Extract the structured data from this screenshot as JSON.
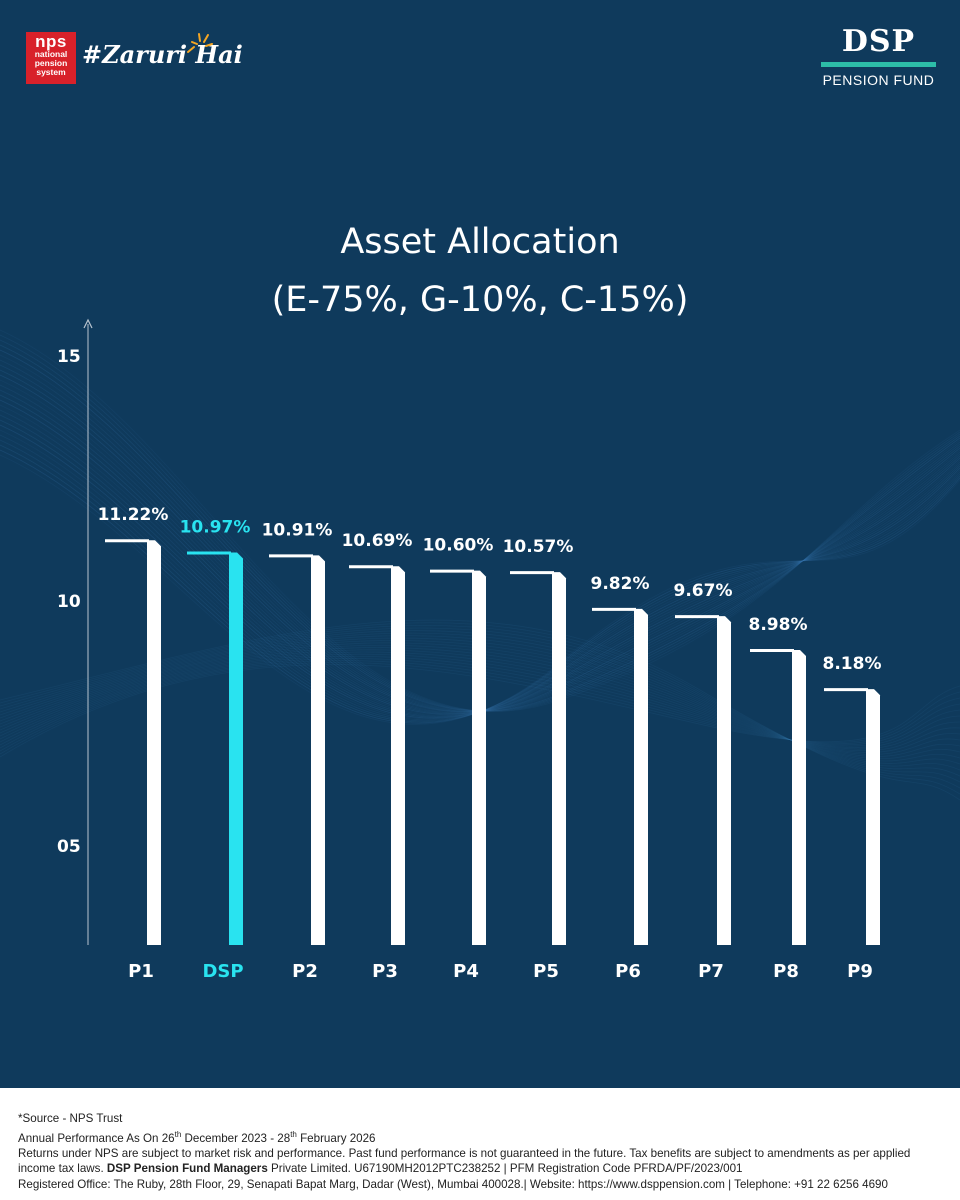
{
  "header": {
    "nps_logo": {
      "line1": "nps",
      "line2": "national",
      "line3": "pension",
      "line4": "system"
    },
    "hashtag": "#Zaruri Hai",
    "brand": {
      "mark": "DSP",
      "subtitle": "PENSION FUND",
      "accent_color": "#2dbda8"
    }
  },
  "chart_data": {
    "type": "bar",
    "title": "Asset Allocation",
    "subtitle": "(E-75%, G-10%, C-15%)",
    "categories": [
      "P1",
      "DSP",
      "P2",
      "P3",
      "P4",
      "P5",
      "P6",
      "P7",
      "P8",
      "P9"
    ],
    "values": [
      11.22,
      10.97,
      10.91,
      10.69,
      10.6,
      10.57,
      9.82,
      9.67,
      8.98,
      8.18
    ],
    "value_labels": [
      "11.22%",
      "10.97%",
      "10.91%",
      "10.69%",
      "10.60%",
      "10.57%",
      "9.82%",
      "9.67%",
      "8.98%",
      "8.18%"
    ],
    "y_ticks": [
      {
        "value": 15,
        "label": "15"
      },
      {
        "value": 10,
        "label": "10"
      },
      {
        "value": 5,
        "label": "05"
      }
    ],
    "ylim": [
      0,
      16
    ],
    "xlabel": "",
    "ylabel": "",
    "highlight_category": "DSP",
    "bar_color": "#ffffff",
    "highlight_color": "#29e3f0",
    "background_color": "#0f3a5c",
    "grid": false
  },
  "footer": {
    "source": "*Source - NPS Trust",
    "period_prefix": "Annual Performance As On  26",
    "period_sup1": "th",
    "period_mid": " December 2023 - 28",
    "period_sup2": "th",
    "period_end": " February 2026",
    "disclaimer_1": "Returns under NPS are subject to market risk and performance. Past fund performance is not guaranteed in the future. Tax benefits are subject to amendments as per applied",
    "disclaimer_2a": "income tax laws. ",
    "disclaimer_2b": "DSP Pension Fund Managers",
    "disclaimer_2c": " Private Limited. U67190MH2012PTC238252 | PFM Registration Code PFRDA/PF/2023/001",
    "registered": "Registered Office: The Ruby, 28th Floor, 29, Senapati Bapat Marg, Dadar (West), Mumbai 400028.| Website: https://www.dsppension.com | Telephone: +91 22 6256 4690"
  }
}
